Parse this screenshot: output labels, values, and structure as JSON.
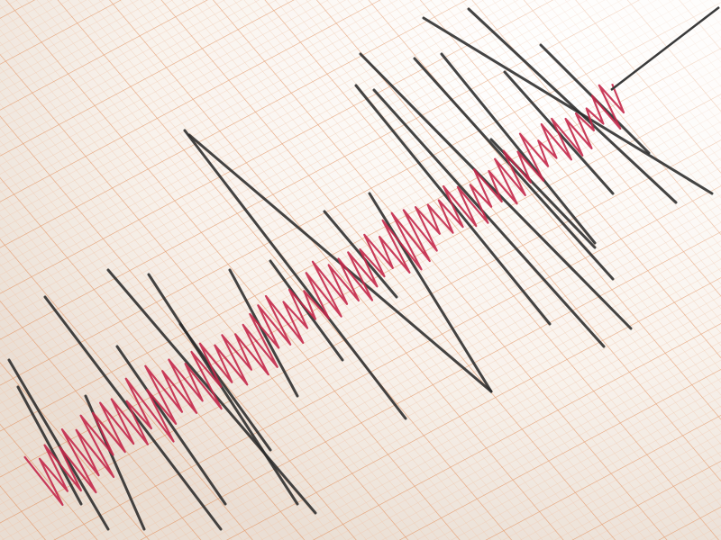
{
  "scene": {
    "subject": "seismograph",
    "colors": {
      "paper": "#fbf7f2",
      "grid_major": "#e8a57a",
      "grid_minor": "#f2c9ad",
      "ink_black": "#2b2b2b",
      "ink_red": "#c4284a",
      "needle": "#3a3a3a"
    }
  }
}
